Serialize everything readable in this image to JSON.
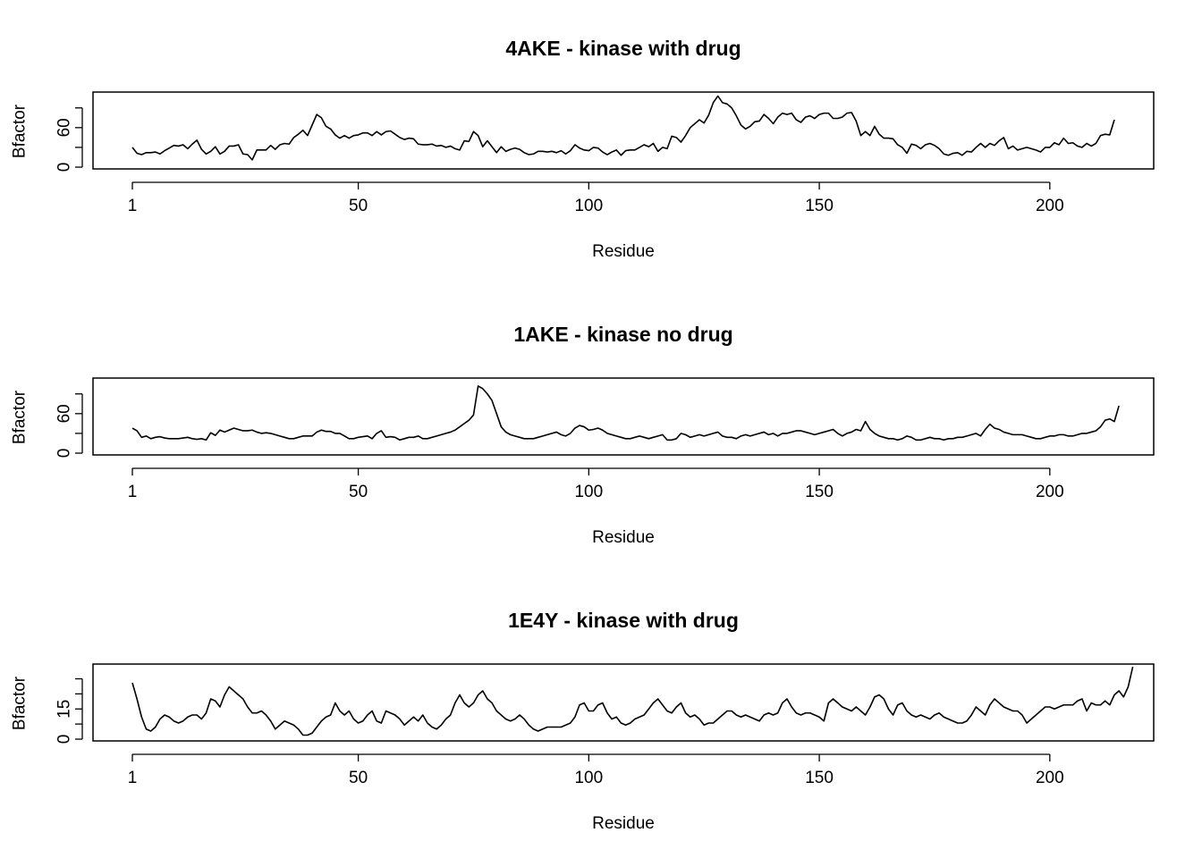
{
  "chart_data": [
    {
      "type": "line",
      "title": "4AKE - kinase with drug",
      "xlabel": "Residue",
      "ylabel": "Bfactor",
      "xlim": [
        1,
        214
      ],
      "ylim": [
        0,
        110
      ],
      "x_ticks": [
        "1",
        "50",
        "100",
        "150",
        "200"
      ],
      "y_ticks": [
        "0",
        "60"
      ],
      "grid": false,
      "series": [
        {
          "x_start": 1,
          "values": [
            30,
            21,
            19,
            22,
            22,
            23,
            20,
            25,
            29,
            33,
            32,
            34,
            28,
            35,
            41,
            27,
            20,
            24,
            31,
            20,
            24,
            32,
            32,
            34,
            20,
            19,
            11,
            26,
            26,
            26,
            33,
            27,
            34,
            36,
            35,
            45,
            50,
            56,
            48,
            64,
            80,
            75,
            62,
            58,
            49,
            44,
            48,
            44,
            48,
            49,
            52,
            52,
            48,
            54,
            49,
            54,
            55,
            50,
            45,
            42,
            44,
            43,
            35,
            34,
            34,
            35,
            32,
            33,
            30,
            32,
            28,
            26,
            40,
            39,
            54,
            48,
            31,
            40,
            31,
            22,
            31,
            24,
            27,
            29,
            27,
            22,
            19,
            20,
            24,
            24,
            23,
            24,
            22,
            25,
            20,
            25,
            34,
            29,
            26,
            25,
            30,
            29,
            23,
            19,
            23,
            26,
            18,
            25,
            26,
            26,
            30,
            34,
            31,
            36,
            24,
            30,
            28,
            47,
            45,
            38,
            48,
            60,
            66,
            72,
            67,
            79,
            98,
            108,
            98,
            96,
            90,
            78,
            64,
            58,
            62,
            69,
            70,
            80,
            74,
            66,
            76,
            82,
            80,
            82,
            72,
            68,
            76,
            78,
            74,
            80,
            82,
            82,
            74,
            74,
            76,
            82,
            83,
            70,
            48,
            54,
            48,
            62,
            50,
            44,
            44,
            43,
            34,
            30,
            21,
            35,
            33,
            28,
            34,
            36,
            33,
            28,
            20,
            18,
            21,
            22,
            18,
            24,
            23,
            30,
            36,
            30,
            36,
            33,
            40,
            45,
            28,
            32,
            26,
            28,
            30,
            28,
            26,
            23,
            30,
            30,
            37,
            34,
            44,
            36,
            37,
            32,
            30,
            36,
            32,
            36,
            48,
            50,
            49,
            72
          ]
        }
      ]
    },
    {
      "type": "line",
      "title": "1AKE - kinase no drug",
      "xlabel": "Residue",
      "ylabel": "Bfactor",
      "xlim": [
        1,
        214
      ],
      "ylim": [
        0,
        110
      ],
      "x_ticks": [
        "1",
        "50",
        "100",
        "150",
        "200"
      ],
      "y_ticks": [
        "0",
        "60"
      ],
      "grid": false,
      "series": [
        {
          "x_start": 1,
          "values": [
            38,
            34,
            24,
            26,
            22,
            24,
            25,
            23,
            22,
            22,
            22,
            23,
            24,
            22,
            21,
            22,
            20,
            31,
            27,
            35,
            32,
            35,
            38,
            36,
            34,
            34,
            35,
            32,
            30,
            31,
            30,
            28,
            26,
            24,
            22,
            22,
            24,
            26,
            26,
            26,
            32,
            35,
            33,
            33,
            30,
            30,
            26,
            22,
            22,
            24,
            25,
            26,
            22,
            30,
            34,
            24,
            25,
            24,
            20,
            22,
            24,
            24,
            26,
            22,
            22,
            24,
            26,
            28,
            30,
            32,
            35,
            40,
            45,
            50,
            58,
            102,
            98,
            90,
            80,
            60,
            40,
            32,
            28,
            26,
            24,
            22,
            22,
            22,
            24,
            26,
            28,
            30,
            32,
            28,
            26,
            30,
            38,
            42,
            40,
            35,
            36,
            38,
            35,
            30,
            28,
            26,
            24,
            22,
            22,
            24,
            26,
            24,
            22,
            24,
            26,
            28,
            20,
            20,
            22,
            30,
            28,
            24,
            26,
            28,
            26,
            28,
            30,
            32,
            26,
            24,
            24,
            22,
            26,
            28,
            26,
            28,
            30,
            32,
            28,
            30,
            26,
            30,
            30,
            32,
            34,
            34,
            32,
            30,
            28,
            30,
            32,
            34,
            36,
            30,
            26,
            30,
            32,
            36,
            34,
            48,
            36,
            30,
            26,
            24,
            22,
            22,
            20,
            22,
            26,
            24,
            20,
            20,
            22,
            24,
            22,
            22,
            20,
            22,
            22,
            24,
            24,
            26,
            28,
            30,
            26,
            36,
            44,
            38,
            36,
            32,
            30,
            28,
            28,
            28,
            26,
            24,
            22,
            22,
            24,
            26,
            26,
            28,
            28,
            26,
            26,
            28,
            30,
            30,
            32,
            34,
            40,
            50,
            52,
            48,
            72
          ]
        }
      ]
    },
    {
      "type": "line",
      "title": "1E4Y - kinase with drug",
      "xlabel": "Residue",
      "ylabel": "Bfactor",
      "xlim": [
        1,
        214
      ],
      "ylim": [
        0,
        36
      ],
      "x_ticks": [
        "1",
        "50",
        "100",
        "150",
        "200"
      ],
      "y_ticks": [
        "0",
        "15"
      ],
      "grid": false,
      "series": [
        {
          "x_start": 1,
          "values": [
            28,
            20,
            11,
            5,
            4,
            6,
            10,
            12,
            11,
            9,
            8,
            9,
            11,
            12,
            12,
            10,
            13,
            20,
            19,
            16,
            22,
            26,
            24,
            22,
            20,
            16,
            13,
            13,
            14,
            12,
            9,
            5,
            7,
            9,
            8,
            7,
            5,
            2,
            2,
            3,
            6,
            9,
            11,
            12,
            18,
            14,
            12,
            14,
            10,
            8,
            9,
            12,
            14,
            9,
            8,
            14,
            13,
            12,
            10,
            7,
            9,
            11,
            9,
            12,
            8,
            6,
            5,
            7,
            10,
            12,
            18,
            22,
            18,
            16,
            18,
            22,
            24,
            20,
            18,
            14,
            12,
            10,
            9,
            10,
            12,
            10,
            7,
            5,
            4,
            5,
            6,
            6,
            6,
            6,
            7,
            8,
            11,
            17,
            18,
            14,
            14,
            17,
            18,
            13,
            10,
            11,
            8,
            7,
            8,
            10,
            11,
            12,
            15,
            18,
            20,
            17,
            14,
            13,
            16,
            18,
            13,
            11,
            12,
            10,
            7,
            8,
            8,
            10,
            12,
            14,
            14,
            12,
            11,
            12,
            11,
            10,
            9,
            12,
            13,
            12,
            13,
            18,
            20,
            16,
            13,
            12,
            13,
            13,
            12,
            11,
            9,
            18,
            20,
            18,
            16,
            15,
            14,
            16,
            14,
            12,
            16,
            21,
            22,
            20,
            15,
            12,
            17,
            18,
            14,
            12,
            11,
            12,
            11,
            10,
            12,
            13,
            11,
            10,
            9,
            8,
            8,
            9,
            12,
            16,
            14,
            12,
            17,
            20,
            18,
            16,
            15,
            14,
            14,
            12,
            8,
            10,
            12,
            14,
            16,
            16,
            15,
            16,
            17,
            17,
            17,
            19,
            20,
            14,
            18,
            17,
            17,
            19,
            17,
            22,
            24,
            21,
            26,
            36
          ]
        }
      ]
    }
  ]
}
